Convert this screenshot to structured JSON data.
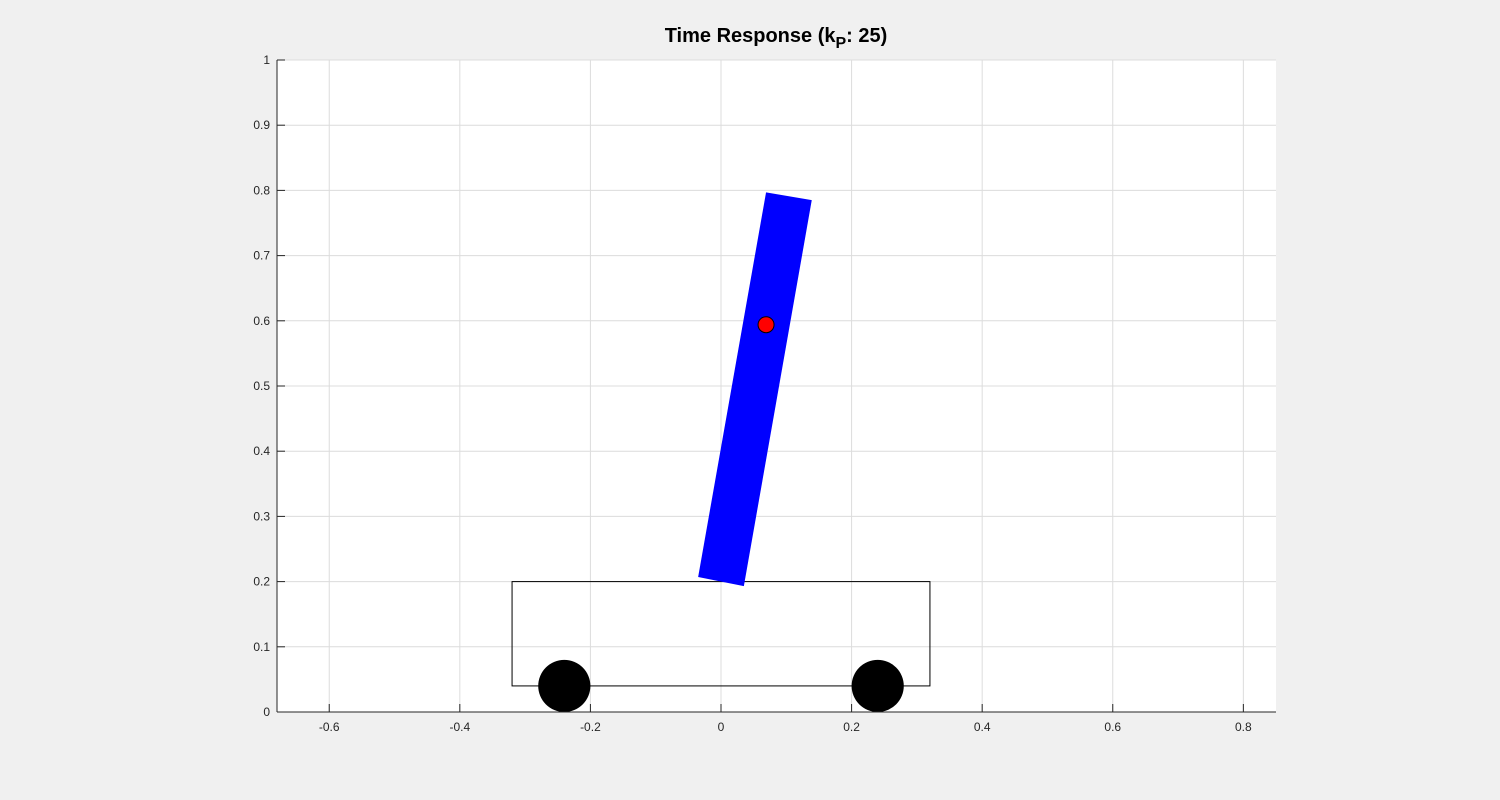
{
  "chart_data": {
    "type": "scatter",
    "title": "Time Response (k",
    "title_subscript": "P",
    "title_suffix": ": 25)",
    "xlabel": "",
    "ylabel": "",
    "xlim": [
      -0.68,
      0.85
    ],
    "ylim": [
      0,
      1
    ],
    "grid": true,
    "x_ticks": [
      -0.6,
      -0.4,
      -0.2,
      0,
      0.2,
      0.4,
      0.6,
      0.8
    ],
    "x_tick_labels": [
      "-0.6",
      "-0.4",
      "-0.2",
      "0",
      "0.2",
      "0.4",
      "0.6",
      "0.8"
    ],
    "y_ticks": [
      0,
      0.1,
      0.2,
      0.3,
      0.4,
      0.5,
      0.6,
      0.7,
      0.8,
      0.9,
      1
    ],
    "y_tick_labels": [
      "0",
      "0.1",
      "0.2",
      "0.3",
      "0.4",
      "0.5",
      "0.6",
      "0.7",
      "0.8",
      "0.9",
      "1"
    ],
    "cart": {
      "x_min": -0.32,
      "x_max": 0.32,
      "y_min": 0.04,
      "y_max": 0.2,
      "color": "#000000"
    },
    "wheels": [
      {
        "x": -0.24,
        "y": 0.04,
        "radius": 0.04,
        "color": "#000000"
      },
      {
        "x": 0.24,
        "y": 0.04,
        "radius": 0.04,
        "color": "#000000"
      }
    ],
    "pendulum": {
      "corners": [
        [
          -0.035,
          0.207
        ],
        [
          0.035,
          0.193
        ],
        [
          0.139,
          0.785
        ],
        [
          0.069,
          0.797
        ]
      ],
      "color": "#0000ff"
    },
    "bob": {
      "x": 0.069,
      "y": 0.594,
      "color": "#ff0000"
    }
  }
}
